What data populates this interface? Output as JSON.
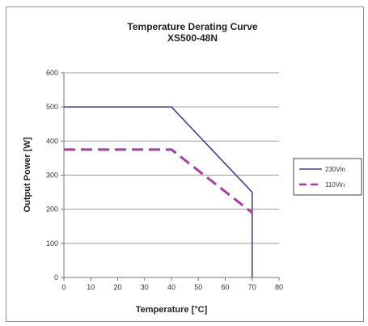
{
  "chart_data": {
    "type": "line",
    "title": "Temperature Derating Curve",
    "subtitle": "XS500-48N",
    "xlabel": "Temperature [°C]",
    "ylabel": "Output Power [W]",
    "xlim": [
      0,
      80
    ],
    "ylim": [
      0,
      600
    ],
    "x_ticks": [
      "0",
      "10",
      "20",
      "30",
      "40",
      "50",
      "60",
      "70",
      "80"
    ],
    "y_ticks": [
      "0",
      "100",
      "200",
      "300",
      "400",
      "500",
      "600"
    ],
    "grid": "horizontal",
    "legend_position": "right",
    "series": [
      {
        "name": "230Vin",
        "color": "#4b3a9b",
        "style": "solid",
        "x": [
          0,
          40,
          70,
          70
        ],
        "y": [
          500,
          500,
          250,
          0
        ]
      },
      {
        "name": "110Vin",
        "color": "#a63aa6",
        "style": "dashed",
        "x": [
          0,
          40,
          70
        ],
        "y": [
          375,
          375,
          190
        ]
      }
    ]
  }
}
